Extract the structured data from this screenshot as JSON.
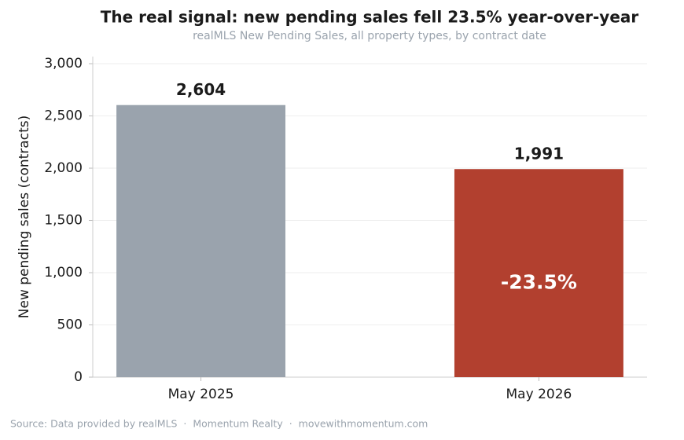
{
  "chart_data": {
    "type": "bar",
    "title": "The real signal: new pending sales fell 23.5% year-over-year",
    "subtitle": "realMLS New Pending Sales, all property types, by contract date",
    "ylabel": "New pending sales (contracts)",
    "categories": [
      "May 2025",
      "May 2026"
    ],
    "values": [
      2604,
      1991
    ],
    "value_labels": [
      "2,604",
      "1,991"
    ],
    "colors": [
      "#9aa3ad",
      "#b2402f"
    ],
    "annotation": "-23.5%",
    "ylim": [
      0,
      3068
    ],
    "yticks": [
      0,
      500,
      {
        "value": 1000,
        "label": "1,000"
      },
      {
        "value": 1500,
        "label": "1,500"
      },
      {
        "value": 2000,
        "label": "2,000"
      },
      {
        "value": 2500,
        "label": "2,500"
      },
      {
        "value": 3000,
        "label": "3,000"
      }
    ],
    "grid": true,
    "source": "Source: Data provided by realMLS  ·  Momentum Realty  ·  movewithmomentum.com"
  }
}
